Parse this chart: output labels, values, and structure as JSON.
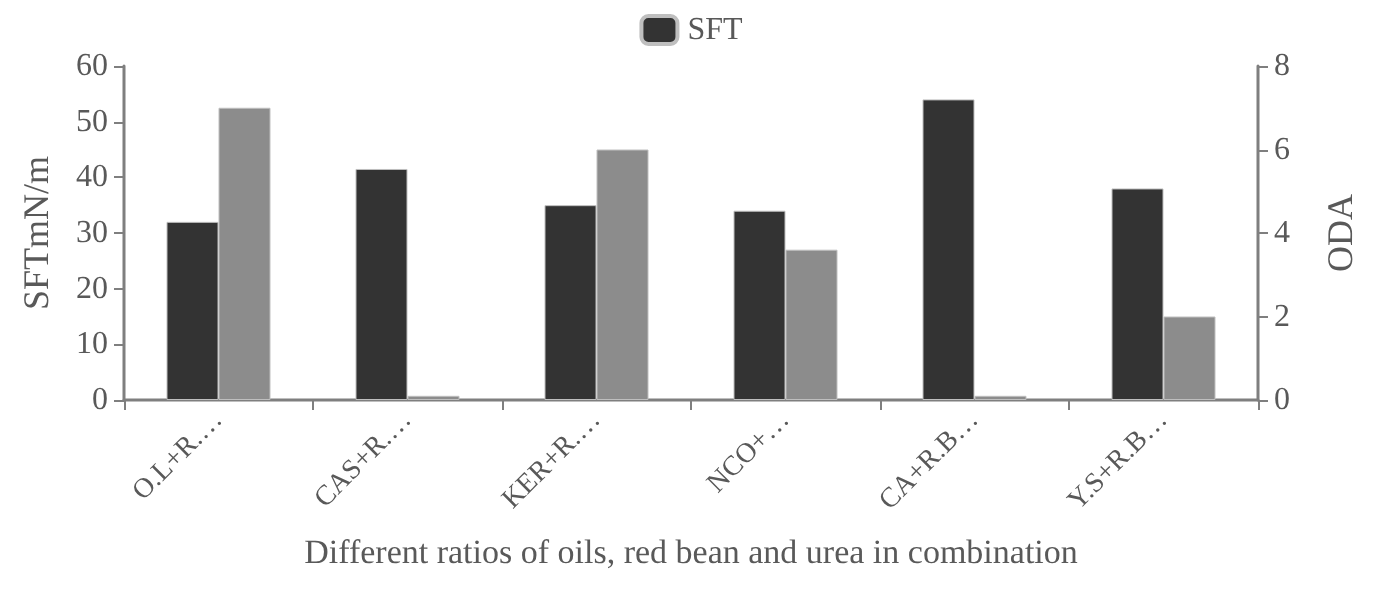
{
  "chart_data": {
    "type": "bar",
    "xlabel": "Different ratios of oils, red bean and urea in combination",
    "ylabel": "SFTmN/m",
    "y2label": "ODA",
    "categories": [
      "O.L+R.…",
      "CAS+R.…",
      "KER+R.…",
      "NCO+…",
      "CA+R.B…",
      "Y.S+R.B…"
    ],
    "series": [
      {
        "name": "SFT",
        "color": "#333333",
        "values": [
          32,
          41.5,
          35,
          34,
          54,
          38
        ]
      },
      {
        "color": "#8c8c8c",
        "axis": "y2",
        "values": [
          7.0,
          0.1,
          6.0,
          3.6,
          0.1,
          2.0
        ]
      }
    ],
    "ylim": [
      0,
      60
    ],
    "yticks": [
      0,
      10,
      20,
      30,
      40,
      50,
      60
    ],
    "y2lim": [
      0,
      8
    ],
    "y2ticks": [
      0,
      2,
      4,
      6,
      8
    ],
    "grid": false,
    "legend": "top"
  }
}
